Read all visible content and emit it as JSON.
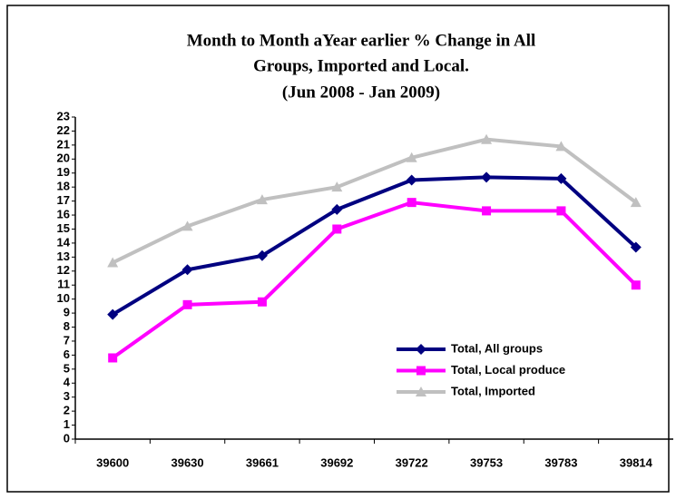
{
  "chart_data": {
    "type": "line",
    "title": [
      "Month to Month aYear earlier % Change in All",
      "Groups, Imported and Local.",
      "(Jun 2008 - Jan 2009)"
    ],
    "categories": [
      "39600",
      "39630",
      "39661",
      "39692",
      "39722",
      "39753",
      "39783",
      "39814"
    ],
    "series": [
      {
        "name": "Total, All groups",
        "color": "#000080",
        "marker": "diamond",
        "values": [
          8.9,
          12.1,
          13.1,
          16.4,
          18.5,
          18.7,
          18.6,
          13.7
        ]
      },
      {
        "name": "Total, Local produce",
        "color": "#ff00ff",
        "marker": "square",
        "values": [
          5.8,
          9.6,
          9.8,
          15.0,
          16.9,
          16.3,
          16.3,
          11.0
        ]
      },
      {
        "name": "Total, Imported",
        "color": "#c0c0c0",
        "marker": "triangle",
        "values": [
          12.6,
          15.2,
          17.1,
          18.0,
          20.1,
          21.4,
          20.9,
          16.9
        ]
      }
    ],
    "ylim": [
      0,
      23
    ],
    "yticks": [
      0,
      1,
      2,
      3,
      4,
      5,
      6,
      7,
      8,
      9,
      10,
      11,
      12,
      13,
      14,
      15,
      16,
      17,
      18,
      19,
      20,
      21,
      22,
      23
    ],
    "grid": false,
    "legend": "right"
  }
}
